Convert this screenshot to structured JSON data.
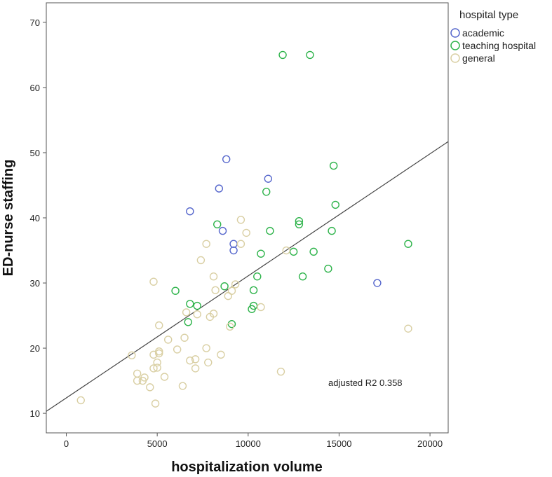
{
  "chart_data": {
    "type": "scatter",
    "xlabel": "hospitalization volume",
    "ylabel": "ED-nurse staffing",
    "xlim": [
      -1100,
      21000
    ],
    "ylim": [
      7,
      73
    ],
    "xticks": [
      0,
      5000,
      10000,
      15000,
      20000
    ],
    "xtick_labels": [
      "0",
      "5000",
      "10000",
      "15000",
      "20000"
    ],
    "yticks": [
      10,
      20,
      30,
      40,
      50,
      60,
      70
    ],
    "ytick_labels": [
      "10",
      "20",
      "30",
      "40",
      "50",
      "60",
      "70"
    ],
    "grid": false,
    "legend": {
      "title": "hospital type",
      "position": "top-right"
    },
    "annotation": "adjusted R2 0.358",
    "fit_line": {
      "x": [
        -1100,
        21000
      ],
      "y": [
        10.3,
        51.7
      ]
    },
    "series": [
      {
        "name": "academic",
        "color": "#5566cc",
        "points": [
          [
            8800,
            49.0
          ],
          [
            11100,
            46.0
          ],
          [
            8400,
            44.5
          ],
          [
            6800,
            41.0
          ],
          [
            8600,
            38.0
          ],
          [
            9200,
            36.0
          ],
          [
            9200,
            35.0
          ],
          [
            17100,
            30.0
          ]
        ]
      },
      {
        "name": "teaching hospital",
        "color": "#2db34a",
        "points": [
          [
            11900,
            65.0
          ],
          [
            13400,
            65.0
          ],
          [
            14700,
            48.0
          ],
          [
            11000,
            44.0
          ],
          [
            14800,
            42.0
          ],
          [
            12800,
            39.5
          ],
          [
            12800,
            39.0
          ],
          [
            8300,
            39.0
          ],
          [
            11200,
            38.0
          ],
          [
            14600,
            38.0
          ],
          [
            18800,
            36.0
          ],
          [
            13600,
            34.8
          ],
          [
            12500,
            34.8
          ],
          [
            10700,
            34.5
          ],
          [
            14400,
            32.2
          ],
          [
            10500,
            31.0
          ],
          [
            13000,
            31.0
          ],
          [
            8700,
            29.5
          ],
          [
            6000,
            28.8
          ],
          [
            10300,
            28.9
          ],
          [
            6800,
            26.8
          ],
          [
            7200,
            26.5
          ],
          [
            10300,
            26.5
          ],
          [
            10200,
            26.0
          ],
          [
            6700,
            24.0
          ],
          [
            9100,
            23.7
          ]
        ]
      },
      {
        "name": "general",
        "color": "#d9cfa3",
        "points": [
          [
            9600,
            39.7
          ],
          [
            9900,
            37.7
          ],
          [
            7700,
            36.0
          ],
          [
            9600,
            36.0
          ],
          [
            12100,
            35.0
          ],
          [
            7400,
            33.5
          ],
          [
            4800,
            30.2
          ],
          [
            8100,
            31.0
          ],
          [
            9300,
            29.8
          ],
          [
            8200,
            28.9
          ],
          [
            9100,
            28.8
          ],
          [
            8900,
            28.0
          ],
          [
            10700,
            26.3
          ],
          [
            6600,
            25.5
          ],
          [
            7200,
            25.2
          ],
          [
            8100,
            25.3
          ],
          [
            7900,
            24.8
          ],
          [
            5100,
            23.5
          ],
          [
            9000,
            23.3
          ],
          [
            18800,
            23.0
          ],
          [
            6500,
            21.6
          ],
          [
            5600,
            21.3
          ],
          [
            7700,
            20.0
          ],
          [
            6100,
            19.8
          ],
          [
            5100,
            19.5
          ],
          [
            5100,
            19.2
          ],
          [
            4800,
            19.0
          ],
          [
            3600,
            18.9
          ],
          [
            8500,
            19.0
          ],
          [
            7100,
            18.3
          ],
          [
            6800,
            18.1
          ],
          [
            7800,
            17.8
          ],
          [
            5000,
            17.8
          ],
          [
            5000,
            17.0
          ],
          [
            4800,
            16.9
          ],
          [
            7100,
            16.9
          ],
          [
            11800,
            16.4
          ],
          [
            3900,
            16.1
          ],
          [
            4300,
            15.5
          ],
          [
            5400,
            15.6
          ],
          [
            3900,
            15.0
          ],
          [
            4200,
            15.0
          ],
          [
            4600,
            14.0
          ],
          [
            6400,
            14.2
          ],
          [
            800,
            12.0
          ],
          [
            4900,
            11.5
          ]
        ]
      }
    ]
  }
}
